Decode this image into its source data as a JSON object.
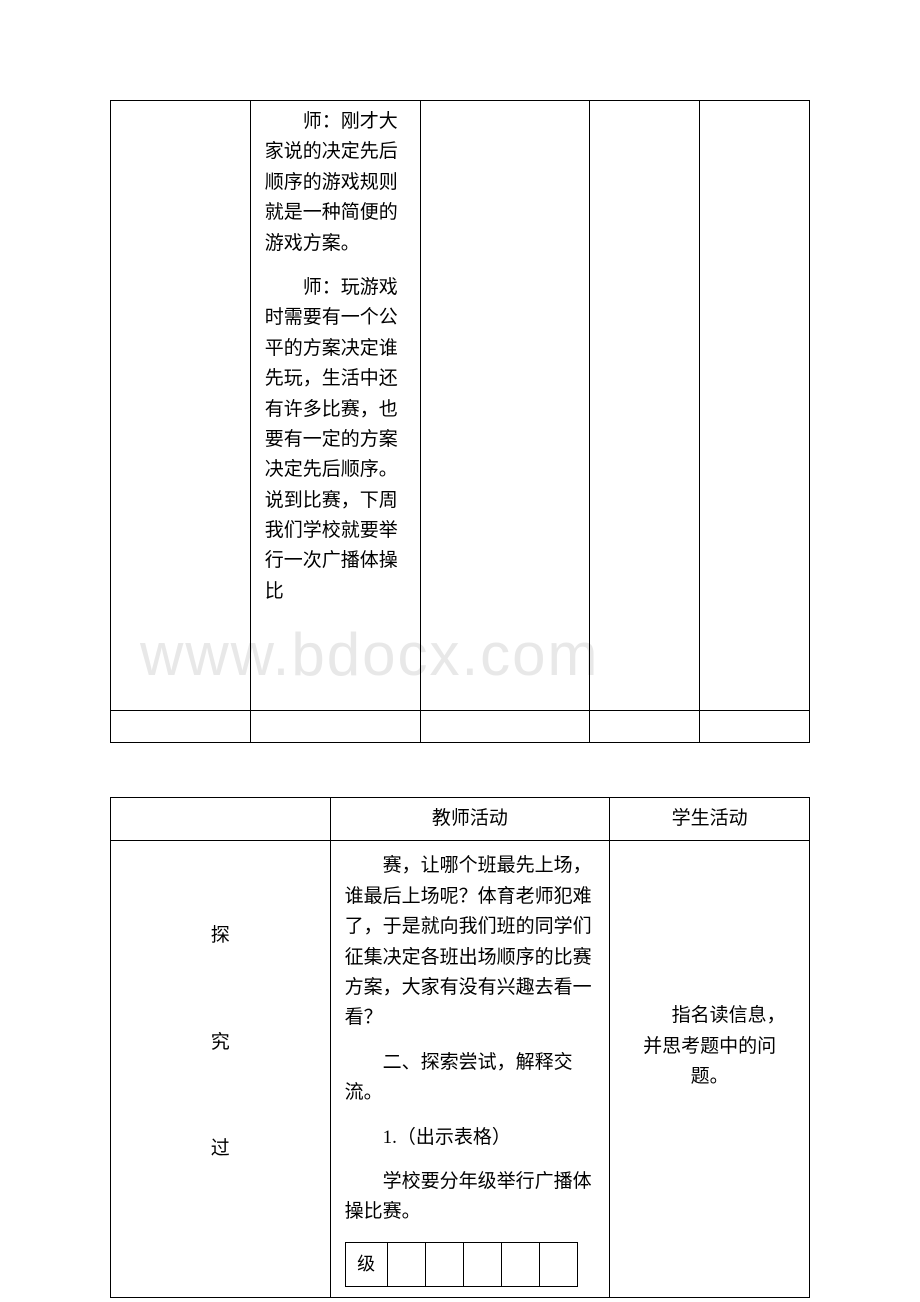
{
  "watermark": "www.bdocx.com",
  "table1": {
    "para1": "师：刚才大家说的决定先后顺序的游戏规则就是一种简便的游戏方案。",
    "para2": "师：玩游戏时需要有一个公平的方案决定谁先玩，生活中还有许多比赛，也要有一定的方案决定先后顺序。说到比赛，下周我们学校就要举行一次广播体操比"
  },
  "table2": {
    "header": {
      "col2": "教师活动",
      "col3": "学生活动"
    },
    "leftChars": [
      "探",
      "究",
      "过"
    ],
    "para1": "赛，让哪个班最先上场，谁最后上场呢？体育老师犯难了，于是就向我们班的同学们征集决定各班出场顺序的比赛方案，大家有没有兴趣去看一看？",
    "para2": "二、探索尝试，解释交流。",
    "para3": "1.（出示表格）",
    "para4": "学校要分年级举行广播体操比赛。",
    "innerLabel": "级",
    "rightText": "指名读信息，并思考题中的问题。"
  }
}
